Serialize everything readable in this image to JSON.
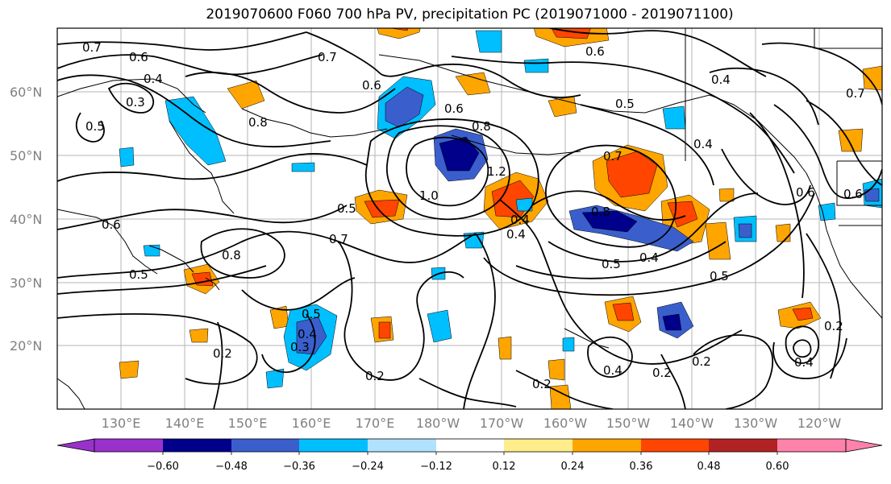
{
  "title": "2019070600 F060 700 hPa PV, precipitation PC (2019071000 - 2019071100)",
  "lat_labels": [
    "60°N",
    "50°N",
    "40°N",
    "30°N",
    "20°N"
  ],
  "lon_labels": [
    "130°E",
    "140°E",
    "150°E",
    "160°E",
    "170°E",
    "180°W",
    "170°W",
    "160°W",
    "150°W",
    "140°W",
    "130°W",
    "120°W"
  ],
  "colorbar": {
    "levels": [
      "−0.60",
      "−0.48",
      "−0.36",
      "−0.24",
      "−0.12",
      "0.12",
      "0.24",
      "0.36",
      "0.48",
      "0.60"
    ],
    "colors": [
      "#9932cc",
      "#00008b",
      "#3a5fcd",
      "#00bfff",
      "#b0e2ff",
      "#ffffff",
      "#ffec8b",
      "#ffa500",
      "#ff4500",
      "#b22222",
      "#ff82ab"
    ]
  },
  "pv_contour_labels": [
    {
      "text": "0.7"
    },
    {
      "text": "0.6"
    },
    {
      "text": "0.4"
    },
    {
      "text": "0.3"
    },
    {
      "text": "0.5"
    },
    {
      "text": "0.8"
    },
    {
      "text": "0.7"
    },
    {
      "text": "0.6"
    },
    {
      "text": "0.6"
    },
    {
      "text": "0.8"
    },
    {
      "text": "1.0"
    },
    {
      "text": "1.2"
    },
    {
      "text": "0.5"
    },
    {
      "text": "0.7"
    },
    {
      "text": "0.6"
    },
    {
      "text": "0.8"
    },
    {
      "text": "0.5"
    },
    {
      "text": "0.5"
    },
    {
      "text": "0.4"
    },
    {
      "text": "0.3"
    },
    {
      "text": "0.2"
    },
    {
      "text": "0.2"
    },
    {
      "text": "0.2"
    },
    {
      "text": "0.4"
    },
    {
      "text": "0.2"
    },
    {
      "text": "0.2"
    },
    {
      "text": "0.4"
    },
    {
      "text": "0.2"
    },
    {
      "text": "0.7"
    },
    {
      "text": "0.5"
    },
    {
      "text": "0.8"
    },
    {
      "text": "0.4"
    },
    {
      "text": "0.4"
    },
    {
      "text": "0.6"
    },
    {
      "text": "0.5"
    },
    {
      "text": "0.6"
    },
    {
      "text": "0.6"
    },
    {
      "text": "0.4"
    },
    {
      "text": "0.7"
    },
    {
      "text": "0.5"
    },
    {
      "text": "0.4"
    },
    {
      "text": "0.4"
    }
  ]
}
